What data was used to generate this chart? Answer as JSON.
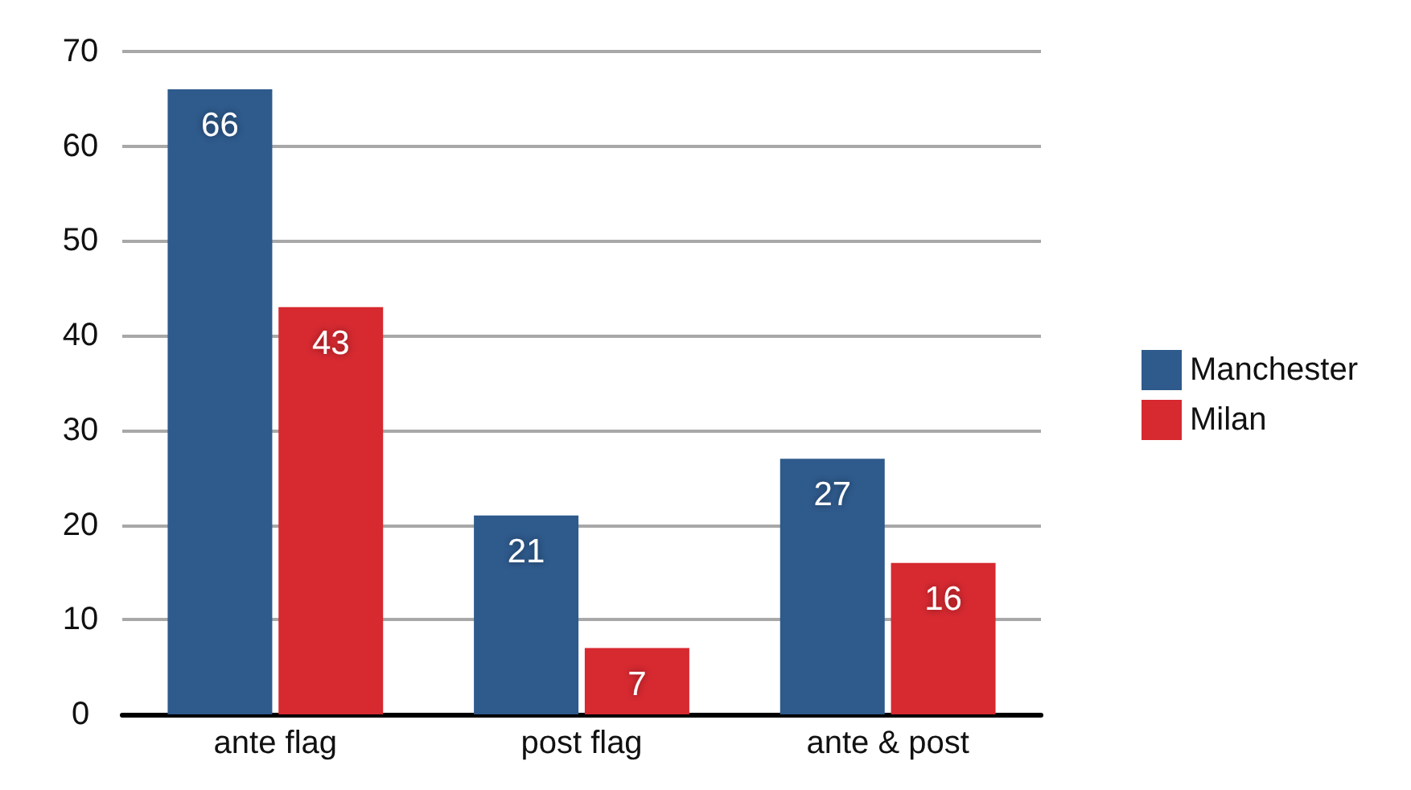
{
  "chart_data": {
    "type": "bar",
    "categories": [
      "ante flag",
      "post flag",
      "ante & post"
    ],
    "series": [
      {
        "name": "Manchester",
        "color": "#2e5a8c",
        "values": [
          66,
          21,
          27
        ]
      },
      {
        "name": "Milan",
        "color": "#d62930",
        "values": [
          43,
          7,
          16
        ]
      }
    ],
    "ylim": [
      0,
      70
    ],
    "yticks": [
      0,
      10,
      20,
      30,
      40,
      50,
      60,
      70
    ],
    "grid": "y",
    "legend": "right",
    "data_labels": true
  }
}
